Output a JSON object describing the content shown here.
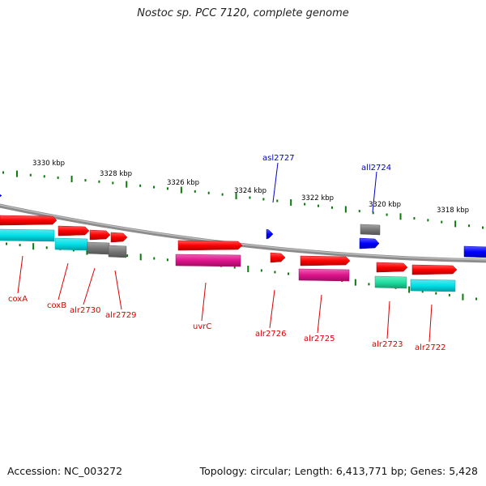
{
  "title": "Nostoc sp. PCC 7120, complete genome",
  "accession": "Accession: NC_003272",
  "topology": "Topology: circular; Length: 6,413,771 bp; Genes: 5,428",
  "colors": {
    "backbone": "#8c8c8c",
    "tick": "#0a7a0a",
    "label_red": "#dd0000",
    "label_blue": "#0000cc",
    "gene_red": "#ff0000",
    "gene_blue": "#0000ff",
    "gene_cyan": "#00e0e8",
    "gene_gray": "#777777",
    "gene_magenta": "#e0138c",
    "gene_green": "#20e0a0"
  },
  "ticks": [
    "3330 kbp",
    "3328 kbp",
    "3326 kbp",
    "3324 kbp",
    "3322 kbp",
    "3320 kbp",
    "3318 kbp"
  ],
  "genes": [
    {
      "name": "coxA",
      "label_color": "label_red",
      "track": "forward-outer",
      "color": "gene_red"
    },
    {
      "name": "coxB",
      "label_color": "label_red",
      "track": "forward-outer",
      "color": "gene_red"
    },
    {
      "name": "alr2730",
      "label_color": "label_red",
      "track": "forward-outer",
      "color": "gene_red"
    },
    {
      "name": "alr2729",
      "label_color": "label_red",
      "track": "forward-outer",
      "color": "gene_red"
    },
    {
      "name": "uvrC",
      "label_color": "label_red",
      "track": "forward-outer",
      "color": "gene_red"
    },
    {
      "name": "asl2727",
      "label_color": "label_blue",
      "track": "forward-inner",
      "color": "gene_blue"
    },
    {
      "name": "alr2726",
      "label_color": "label_red",
      "track": "forward-outer",
      "color": "gene_red"
    },
    {
      "name": "alr2725",
      "label_color": "label_red",
      "track": "forward-outer",
      "color": "gene_red"
    },
    {
      "name": "all2724",
      "label_color": "label_blue",
      "track": "reverse",
      "color": "gene_blue"
    },
    {
      "name": "alr2723",
      "label_color": "label_red",
      "track": "forward-outer",
      "color": "gene_red"
    },
    {
      "name": "alr2722",
      "label_color": "label_red",
      "track": "forward-outer",
      "color": "gene_red"
    }
  ]
}
